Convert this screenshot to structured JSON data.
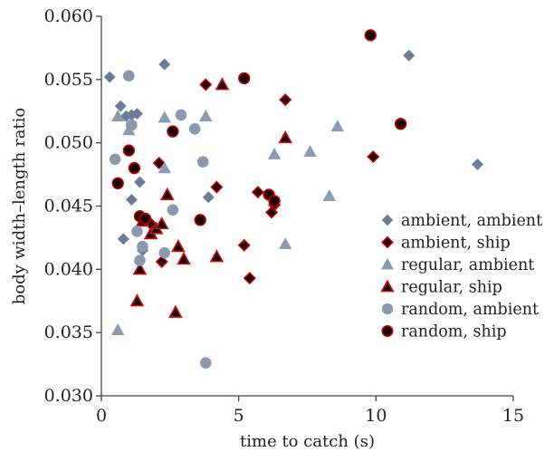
{
  "chart_data": {
    "type": "scatter",
    "title": "",
    "xlabel": "time to catch (s)",
    "ylabel": "body width–length ratio",
    "xlim": [
      0,
      15
    ],
    "ylim": [
      0.03,
      0.06
    ],
    "xticks": [
      0,
      5,
      10,
      15
    ],
    "xtick_labels": [
      "0",
      "5",
      "10",
      "15"
    ],
    "yticks": [
      0.03,
      0.035,
      0.04,
      0.045,
      0.05,
      0.055,
      0.06
    ],
    "ytick_labels": [
      "0.030",
      "0.035",
      "0.040",
      "0.045",
      "0.050",
      "0.055",
      "0.060"
    ],
    "grid": false,
    "legend_position": "right",
    "series": [
      {
        "name": "ambient, ambient",
        "marker": "diamond",
        "fill": "#6b7d99",
        "stroke": "#6b7d99",
        "points": [
          [
            0.3,
            0.0552
          ],
          [
            0.7,
            0.0529
          ],
          [
            0.9,
            0.0521
          ],
          [
            1.1,
            0.0522
          ],
          [
            1.3,
            0.0523
          ],
          [
            2.3,
            0.0562
          ],
          [
            11.2,
            0.0569
          ],
          [
            13.7,
            0.0483
          ],
          [
            0.8,
            0.0424
          ],
          [
            1.1,
            0.0455
          ],
          [
            1.4,
            0.0469
          ],
          [
            1.5,
            0.0415
          ],
          [
            3.9,
            0.0457
          ]
        ]
      },
      {
        "name": "ambient, ship",
        "marker": "diamond",
        "fill": "#1a0000",
        "stroke": "#c00000",
        "points": [
          [
            3.8,
            0.0546
          ],
          [
            6.7,
            0.0534
          ],
          [
            9.9,
            0.0489
          ],
          [
            2.1,
            0.0484
          ],
          [
            4.2,
            0.0465
          ],
          [
            5.7,
            0.0461
          ],
          [
            6.2,
            0.0445
          ],
          [
            6.3,
            0.0451
          ],
          [
            5.2,
            0.0419
          ],
          [
            5.4,
            0.0393
          ],
          [
            2.2,
            0.0406
          ],
          [
            1.8,
            0.0436
          ]
        ]
      },
      {
        "name": "regular, ambient",
        "marker": "triangle",
        "fill": "#8b9bb4",
        "stroke": "#8b9bb4",
        "points": [
          [
            0.6,
            0.0521
          ],
          [
            1.0,
            0.051
          ],
          [
            2.3,
            0.052
          ],
          [
            3.8,
            0.0521
          ],
          [
            2.3,
            0.048
          ],
          [
            6.3,
            0.0491
          ],
          [
            7.6,
            0.0493
          ],
          [
            8.6,
            0.0513
          ],
          [
            8.3,
            0.0458
          ],
          [
            6.7,
            0.042
          ],
          [
            0.6,
            0.0352
          ]
        ]
      },
      {
        "name": "regular, ship",
        "marker": "triangle",
        "fill": "#140000",
        "stroke": "#cc1111",
        "points": [
          [
            4.4,
            0.0546
          ],
          [
            6.7,
            0.0504
          ],
          [
            2.4,
            0.0459
          ],
          [
            1.5,
            0.0438
          ],
          [
            1.8,
            0.0428
          ],
          [
            2.0,
            0.0432
          ],
          [
            2.2,
            0.0436
          ],
          [
            2.8,
            0.0418
          ],
          [
            3.0,
            0.0408
          ],
          [
            4.2,
            0.041
          ],
          [
            1.4,
            0.04
          ],
          [
            1.3,
            0.0375
          ],
          [
            2.7,
            0.0366
          ]
        ]
      },
      {
        "name": "random, ambient",
        "marker": "circle",
        "fill": "#8b98ae",
        "stroke": "#8b98ae",
        "points": [
          [
            1.0,
            0.0553
          ],
          [
            1.1,
            0.0514
          ],
          [
            2.9,
            0.0522
          ],
          [
            3.4,
            0.0511
          ],
          [
            0.5,
            0.0487
          ],
          [
            3.7,
            0.0485
          ],
          [
            1.3,
            0.043
          ],
          [
            2.6,
            0.0447
          ],
          [
            1.5,
            0.0418
          ],
          [
            1.4,
            0.0407
          ],
          [
            2.3,
            0.0413
          ],
          [
            3.8,
            0.0326
          ]
        ]
      },
      {
        "name": "random, ship",
        "marker": "circle",
        "fill": "#1a0000",
        "stroke": "#c00000",
        "points": [
          [
            9.8,
            0.0585
          ],
          [
            5.2,
            0.0551
          ],
          [
            10.9,
            0.0515
          ],
          [
            2.6,
            0.0509
          ],
          [
            1.0,
            0.0494
          ],
          [
            1.2,
            0.048
          ],
          [
            0.6,
            0.0468
          ],
          [
            6.1,
            0.0459
          ],
          [
            6.3,
            0.0454
          ],
          [
            1.4,
            0.0442
          ],
          [
            1.6,
            0.044
          ],
          [
            3.6,
            0.0439
          ]
        ]
      }
    ]
  }
}
